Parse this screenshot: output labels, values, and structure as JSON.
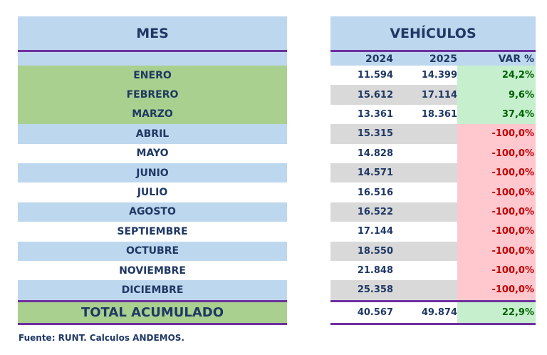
{
  "headers": {
    "mes": "MES",
    "vehiculos": "VEHÍCULOS",
    "col_2024": "2024",
    "col_2025": "2025",
    "col_var": "VAR %"
  },
  "rows": [
    {
      "mes": "ENERO",
      "v2024": "11.594",
      "v2025": "14.399",
      "var": "24,2%"
    },
    {
      "mes": "FEBRERO",
      "v2024": "15.612",
      "v2025": "17.114",
      "var": "9,6%"
    },
    {
      "mes": "MARZO",
      "v2024": "13.361",
      "v2025": "18.361",
      "var": "37,4%"
    },
    {
      "mes": "ABRIL",
      "v2024": "15.315",
      "v2025": "",
      "var": "-100,0%"
    },
    {
      "mes": "MAYO",
      "v2024": "14.828",
      "v2025": "",
      "var": "-100,0%"
    },
    {
      "mes": "JUNIO",
      "v2024": "14.571",
      "v2025": "",
      "var": "-100,0%"
    },
    {
      "mes": "JULIO",
      "v2024": "16.516",
      "v2025": "",
      "var": "-100,0%"
    },
    {
      "mes": "AGOSTO",
      "v2024": "16.522",
      "v2025": "",
      "var": "-100,0%"
    },
    {
      "mes": "SEPTIEMBRE",
      "v2024": "17.144",
      "v2025": "",
      "var": "-100,0%"
    },
    {
      "mes": "OCTUBRE",
      "v2024": "18.550",
      "v2025": "",
      "var": "-100,0%"
    },
    {
      "mes": "NOVIEMBRE",
      "v2024": "21.848",
      "v2025": "",
      "var": "-100,0%"
    },
    {
      "mes": "DICIEMBRE",
      "v2024": "25.358",
      "v2025": "",
      "var": "-100,0%"
    }
  ],
  "total": {
    "label": "TOTAL ACUMULADO",
    "v2024": "40.567",
    "v2025": "49.874",
    "var": "22,9%"
  },
  "footer": "Fuente: RUNT. Calculos ANDEMOS.",
  "colors": {
    "header_blue": "#bdd7ee",
    "green": "#a9d08e",
    "purple": "#7030a0",
    "pos_bg": "#c6efce",
    "neg_bg": "#ffc7ce",
    "grey": "#d9d9d9"
  }
}
